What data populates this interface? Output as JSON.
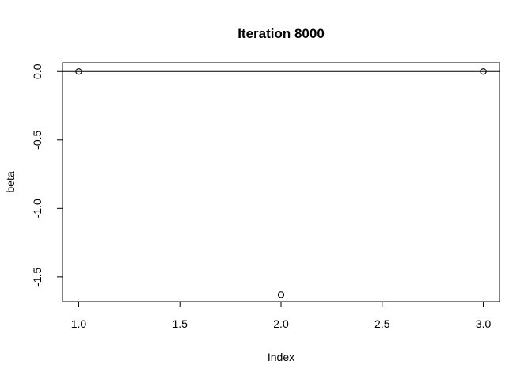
{
  "chart_data": {
    "type": "scatter",
    "title": "Iteration 8000",
    "xlabel": "Index",
    "ylabel": "beta",
    "x": [
      1,
      2,
      3
    ],
    "y": [
      0,
      -1.63,
      0
    ],
    "xlim": [
      0.92,
      3.08
    ],
    "ylim": [
      -1.68,
      0.065
    ],
    "xticks": [
      1.0,
      1.5,
      2.0,
      2.5,
      3.0
    ],
    "xtick_labels": [
      "1.0",
      "1.5",
      "2.0",
      "2.5",
      "3.0"
    ],
    "yticks": [
      0.0,
      -0.5,
      -1.0,
      -1.5
    ],
    "ytick_labels": [
      "0.0",
      "-0.5",
      "-1.0",
      "-1.5"
    ],
    "hline": 0,
    "grid": false,
    "marker": "open-circle",
    "color": "#000000"
  }
}
